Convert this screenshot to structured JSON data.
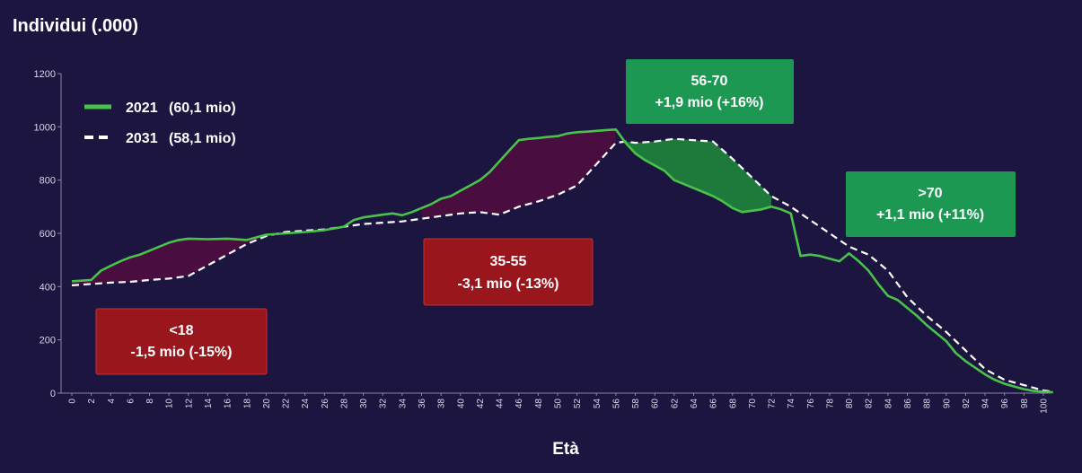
{
  "chart_data": {
    "type": "line",
    "title": "Individui (.000)",
    "xlabel": "Età",
    "ylabel": "",
    "xlim": [
      0,
      100
    ],
    "ylim": [
      0,
      1200
    ],
    "yticks": [
      0,
      200,
      400,
      600,
      800,
      1000,
      1200
    ],
    "xticks": [
      0,
      2,
      4,
      6,
      8,
      10,
      12,
      14,
      16,
      18,
      20,
      22,
      24,
      26,
      28,
      30,
      32,
      34,
      36,
      38,
      40,
      42,
      44,
      46,
      48,
      50,
      52,
      54,
      56,
      58,
      60,
      62,
      64,
      66,
      68,
      70,
      72,
      74,
      76,
      78,
      80,
      82,
      84,
      86,
      88,
      90,
      92,
      94,
      96,
      98,
      100
    ],
    "legend_position": "top-left",
    "colors": {
      "series_2021": "#49c24a",
      "series_2031": "#ffffff",
      "decline_fill": "#4a0d3f",
      "decline_box": "#98161c",
      "growth_fill": "#1d7a3a",
      "growth_box": "#1c9852"
    },
    "series": [
      {
        "name": "2021",
        "legend_value": "(60,1 mio)",
        "style": "solid",
        "x": [
          0,
          2,
          3,
          4,
          5,
          6,
          7,
          8,
          9,
          10,
          11,
          12,
          14,
          16,
          18,
          20,
          22,
          24,
          26,
          28,
          29,
          30,
          31,
          32,
          33,
          34,
          35,
          36,
          37,
          38,
          39,
          40,
          41,
          42,
          43,
          44,
          45,
          46,
          47,
          48,
          49,
          50,
          51,
          52,
          53,
          54,
          55,
          56,
          57,
          58,
          59,
          60,
          61,
          62,
          63,
          64,
          65,
          66,
          67,
          68,
          69,
          70,
          71,
          72,
          73,
          74,
          75,
          76,
          77,
          78,
          79,
          80,
          81,
          82,
          83,
          84,
          85,
          86,
          87,
          88,
          89,
          90,
          91,
          92,
          93,
          94,
          95,
          96,
          97,
          98,
          99,
          100,
          101
        ],
        "y": [
          420,
          425,
          460,
          478,
          495,
          510,
          520,
          535,
          550,
          565,
          575,
          580,
          578,
          580,
          575,
          595,
          600,
          605,
          612,
          625,
          650,
          660,
          665,
          670,
          675,
          668,
          680,
          695,
          710,
          730,
          740,
          760,
          780,
          800,
          830,
          870,
          910,
          950,
          955,
          958,
          962,
          965,
          975,
          980,
          982,
          985,
          988,
          990,
          940,
          900,
          875,
          855,
          835,
          800,
          785,
          770,
          755,
          740,
          720,
          695,
          680,
          685,
          690,
          700,
          690,
          675,
          515,
          520,
          515,
          505,
          495,
          525,
          495,
          460,
          410,
          365,
          350,
          320,
          290,
          255,
          225,
          195,
          150,
          120,
          95,
          70,
          50,
          35,
          25,
          15,
          8,
          5,
          3
        ]
      },
      {
        "name": "2031",
        "legend_value": "(58,1 mio)",
        "style": "dashed",
        "x": [
          0,
          2,
          4,
          6,
          8,
          10,
          12,
          14,
          16,
          18,
          20,
          22,
          24,
          26,
          28,
          30,
          32,
          34,
          36,
          38,
          40,
          42,
          44,
          46,
          48,
          50,
          52,
          54,
          55,
          56,
          57,
          58,
          60,
          62,
          64,
          66,
          68,
          70,
          72,
          74,
          76,
          78,
          80,
          82,
          84,
          86,
          88,
          90,
          92,
          94,
          96,
          98,
          100,
          101
        ],
        "y": [
          405,
          410,
          415,
          418,
          425,
          430,
          440,
          480,
          520,
          560,
          590,
          605,
          610,
          615,
          625,
          635,
          640,
          645,
          655,
          665,
          675,
          680,
          670,
          700,
          720,
          745,
          780,
          860,
          900,
          940,
          945,
          940,
          945,
          955,
          950,
          945,
          880,
          810,
          740,
          700,
          650,
          600,
          550,
          520,
          460,
          360,
          290,
          230,
          160,
          90,
          50,
          30,
          10,
          5
        ]
      }
    ],
    "annotations": [
      {
        "name": "under-18",
        "label": "<18",
        "value": "-1,5 mio (-15%)",
        "kind": "decline",
        "age_range": [
          0,
          18
        ]
      },
      {
        "name": "age-35-55",
        "label": "35-55",
        "value": "-3,1 mio (-13%)",
        "kind": "decline",
        "age_range": [
          35,
          55
        ]
      },
      {
        "name": "age-56-70",
        "label": "56-70",
        "value": "+1,9 mio (+16%)",
        "kind": "growth",
        "age_range": [
          56,
          70
        ]
      },
      {
        "name": "over-70",
        "label": ">70",
        "value": "+1,1 mio (+11%)",
        "kind": "growth",
        "age_range": [
          70,
          100
        ]
      }
    ]
  }
}
